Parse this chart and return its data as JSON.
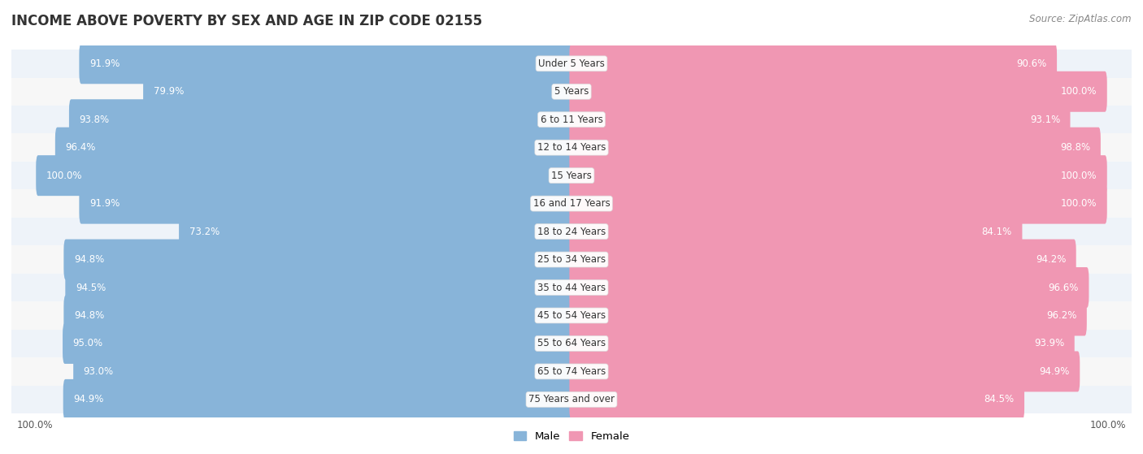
{
  "title": "INCOME ABOVE POVERTY BY SEX AND AGE IN ZIP CODE 02155",
  "source": "Source: ZipAtlas.com",
  "categories": [
    "Under 5 Years",
    "5 Years",
    "6 to 11 Years",
    "12 to 14 Years",
    "15 Years",
    "16 and 17 Years",
    "18 to 24 Years",
    "25 to 34 Years",
    "35 to 44 Years",
    "45 to 54 Years",
    "55 to 64 Years",
    "65 to 74 Years",
    "75 Years and over"
  ],
  "male_values": [
    91.9,
    79.9,
    93.8,
    96.4,
    100.0,
    91.9,
    73.2,
    94.8,
    94.5,
    94.8,
    95.0,
    93.0,
    94.9
  ],
  "female_values": [
    90.6,
    100.0,
    93.1,
    98.8,
    100.0,
    100.0,
    84.1,
    94.2,
    96.6,
    96.2,
    93.9,
    94.9,
    84.5
  ],
  "male_color": "#88b4d9",
  "female_color": "#f097b3",
  "male_label_color": "#ffffff",
  "female_label_color": "#ffffff",
  "background_color": "#ffffff",
  "row_alt_color": "#eef3f9",
  "row_base_color": "#f7f7f7",
  "title_fontsize": 12,
  "source_fontsize": 8.5,
  "bar_label_fontsize": 8.5,
  "category_fontsize": 8.5,
  "legend_fontsize": 9.5,
  "axis_label_fontsize": 8.5,
  "xlim": 100.0,
  "bottom_labels": [
    "100.0%",
    "100.0%"
  ]
}
